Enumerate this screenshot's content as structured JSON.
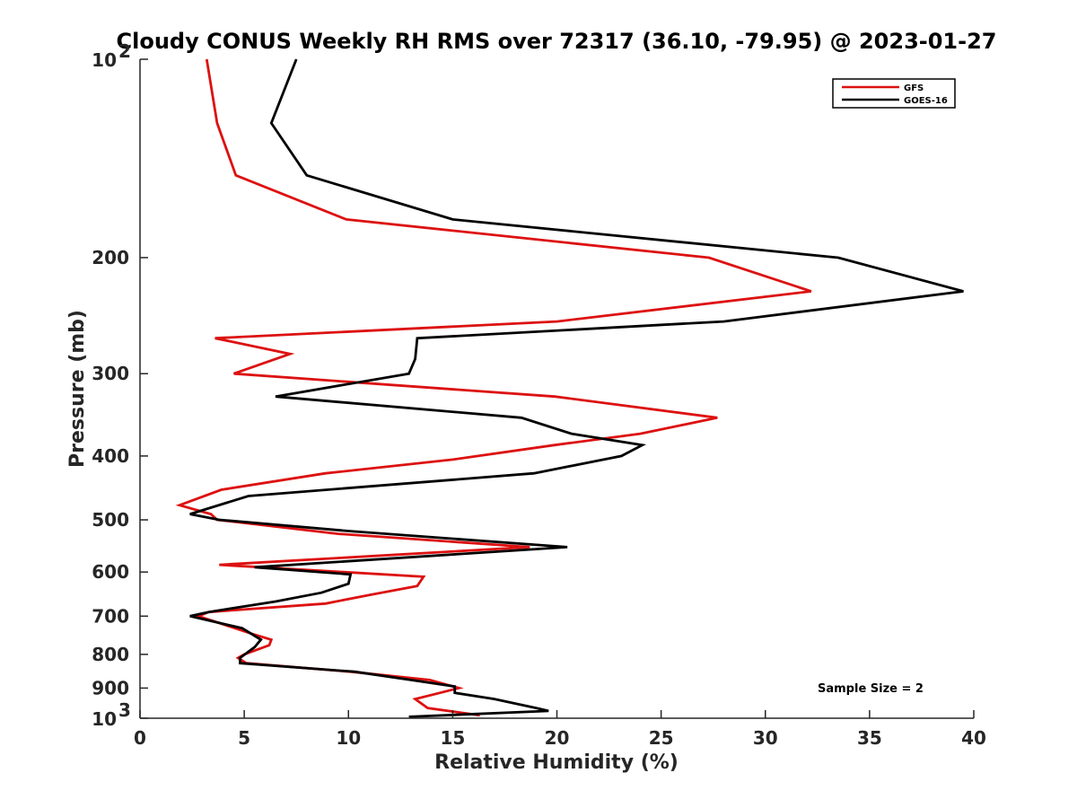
{
  "chart_data": {
    "type": "line",
    "title": "Cloudy CONUS Weekly RH RMS over 72317 (36.10, -79.95) @ 2023-01-27",
    "xlabel": "Relative Humidity (%)",
    "ylabel": "Pressure (mb)",
    "xlim": [
      0,
      40
    ],
    "ylim": [
      100,
      1000
    ],
    "y_scale": "log",
    "y_reversed": true,
    "grid": false,
    "legend_position": "top-right",
    "x_ticks": [
      "0",
      "5",
      "10",
      "15",
      "20",
      "25",
      "30",
      "35",
      "40"
    ],
    "y_ticks": [
      {
        "value": 100,
        "base": "10",
        "exp": "2"
      },
      {
        "value": 200,
        "label": "200"
      },
      {
        "value": 300,
        "label": "300"
      },
      {
        "value": 400,
        "label": "400"
      },
      {
        "value": 500,
        "label": "500"
      },
      {
        "value": 600,
        "label": "600"
      },
      {
        "value": 700,
        "label": "700"
      },
      {
        "value": 800,
        "label": "800"
      },
      {
        "value": 900,
        "label": "900"
      },
      {
        "value": 1000,
        "base": "10",
        "exp": "3"
      }
    ],
    "annotation": "Sample Size = 2",
    "series": [
      {
        "name": "GFS",
        "color": "#dd1111",
        "points": [
          [
            3.2,
            100
          ],
          [
            3.7,
            125
          ],
          [
            4.6,
            150
          ],
          [
            9.9,
            175
          ],
          [
            27.3,
            200
          ],
          [
            32.2,
            225
          ],
          [
            20.0,
            250
          ],
          [
            3.6,
            265
          ],
          [
            7.2,
            280
          ],
          [
            4.5,
            300
          ],
          [
            19.9,
            325
          ],
          [
            27.7,
            350
          ],
          [
            24.0,
            370
          ],
          [
            19.9,
            385
          ],
          [
            15.0,
            405
          ],
          [
            8.9,
            425
          ],
          [
            3.9,
            450
          ],
          [
            1.9,
            475
          ],
          [
            3.4,
            490
          ],
          [
            3.7,
            500
          ],
          [
            9.5,
            525
          ],
          [
            18.7,
            550
          ],
          [
            3.8,
            585
          ],
          [
            13.6,
            610
          ],
          [
            13.3,
            630
          ],
          [
            11.0,
            650
          ],
          [
            8.9,
            670
          ],
          [
            3.3,
            690
          ],
          [
            2.8,
            700
          ],
          [
            5.4,
            745
          ],
          [
            6.3,
            760
          ],
          [
            6.2,
            775
          ],
          [
            5.0,
            800
          ],
          [
            4.7,
            810
          ],
          [
            5.1,
            825
          ],
          [
            10.1,
            850
          ],
          [
            13.9,
            875
          ],
          [
            15.3,
            900
          ],
          [
            14.4,
            915
          ],
          [
            13.2,
            935
          ],
          [
            13.8,
            965
          ],
          [
            16.3,
            990
          ]
        ]
      },
      {
        "name": "GOES-16",
        "color": "#000000",
        "points": [
          [
            7.5,
            100
          ],
          [
            6.3,
            125
          ],
          [
            8.0,
            150
          ],
          [
            15.0,
            175
          ],
          [
            33.5,
            200
          ],
          [
            39.5,
            225
          ],
          [
            28.0,
            250
          ],
          [
            13.3,
            265
          ],
          [
            13.2,
            285
          ],
          [
            12.9,
            300
          ],
          [
            6.5,
            325
          ],
          [
            18.3,
            350
          ],
          [
            20.7,
            370
          ],
          [
            24.1,
            385
          ],
          [
            23.1,
            400
          ],
          [
            18.9,
            425
          ],
          [
            5.2,
            460
          ],
          [
            2.4,
            490
          ],
          [
            3.8,
            500
          ],
          [
            10.0,
            520
          ],
          [
            20.5,
            550
          ],
          [
            5.5,
            590
          ],
          [
            10.1,
            605
          ],
          [
            10.0,
            625
          ],
          [
            8.7,
            645
          ],
          [
            6.5,
            665
          ],
          [
            3.3,
            690
          ],
          [
            2.4,
            700
          ],
          [
            4.9,
            730
          ],
          [
            5.8,
            760
          ],
          [
            5.5,
            780
          ],
          [
            4.8,
            810
          ],
          [
            4.8,
            825
          ],
          [
            10.3,
            850
          ],
          [
            13.0,
            875
          ],
          [
            15.1,
            895
          ],
          [
            15.1,
            915
          ],
          [
            17.0,
            935
          ],
          [
            19.0,
            965
          ],
          [
            19.6,
            975
          ],
          [
            12.9,
            995
          ]
        ]
      }
    ]
  }
}
